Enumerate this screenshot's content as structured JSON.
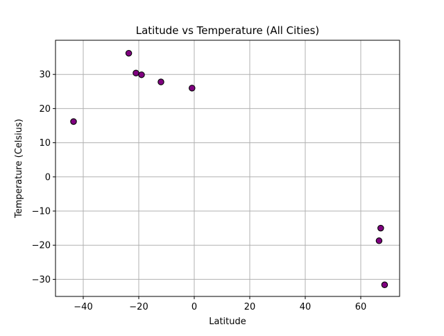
{
  "chart_data": {
    "type": "scatter",
    "title": "Latitude vs Temperature (All Cities)",
    "xlabel": "Latitude",
    "ylabel": "Temperature (Celsius)",
    "xlim": [
      -50,
      74
    ],
    "ylim": [
      -35,
      40
    ],
    "xticks": [
      -40,
      -20,
      0,
      20,
      40,
      60
    ],
    "yticks": [
      -30,
      -20,
      -10,
      0,
      10,
      20,
      30
    ],
    "grid": true,
    "marker_fill": "#800080",
    "marker_edge": "#000000",
    "grid_color": "#b0b0b0",
    "points": [
      {
        "x": -43.5,
        "y": 16.2
      },
      {
        "x": -23.6,
        "y": 36.2
      },
      {
        "x": -21.0,
        "y": 30.4
      },
      {
        "x": -19.0,
        "y": 29.9
      },
      {
        "x": -12.0,
        "y": 27.8
      },
      {
        "x": -0.8,
        "y": 26.0
      },
      {
        "x": 67.2,
        "y": -15.0
      },
      {
        "x": 66.6,
        "y": -18.7
      },
      {
        "x": 68.6,
        "y": -31.6
      }
    ]
  }
}
